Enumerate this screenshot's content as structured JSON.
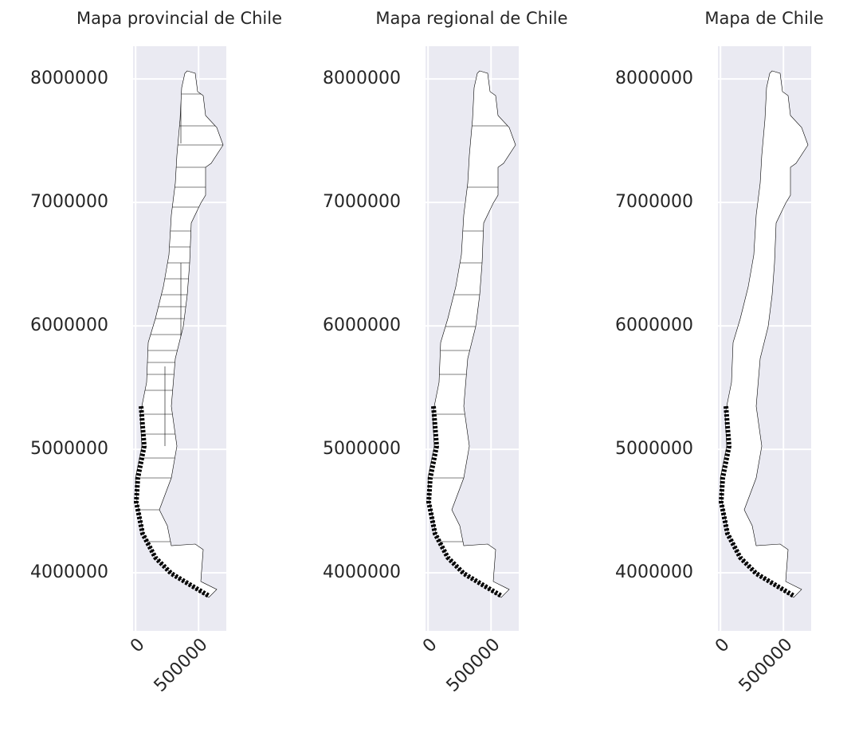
{
  "chart_data": [
    {
      "type": "map",
      "title": "Mapa provincial de Chile",
      "xlim": [
        -20000,
        720000
      ],
      "ylim": [
        3530000,
        8265000
      ],
      "xticks": [
        0,
        500000
      ],
      "yticks": [
        4000000,
        5000000,
        6000000,
        7000000,
        8000000
      ],
      "grid": true
    },
    {
      "type": "map",
      "title": "Mapa regional de Chile",
      "xlim": [
        -20000,
        720000
      ],
      "ylim": [
        3530000,
        8265000
      ],
      "xticks": [
        0,
        500000
      ],
      "yticks": [
        4000000,
        5000000,
        6000000,
        7000000,
        8000000
      ],
      "grid": true
    },
    {
      "type": "map",
      "title": "Mapa de Chile",
      "xlim": [
        -20000,
        720000
      ],
      "ylim": [
        3530000,
        8265000
      ],
      "xticks": [
        0,
        500000
      ],
      "yticks": [
        4000000,
        5000000,
        6000000,
        7000000,
        8000000
      ],
      "grid": true
    }
  ]
}
